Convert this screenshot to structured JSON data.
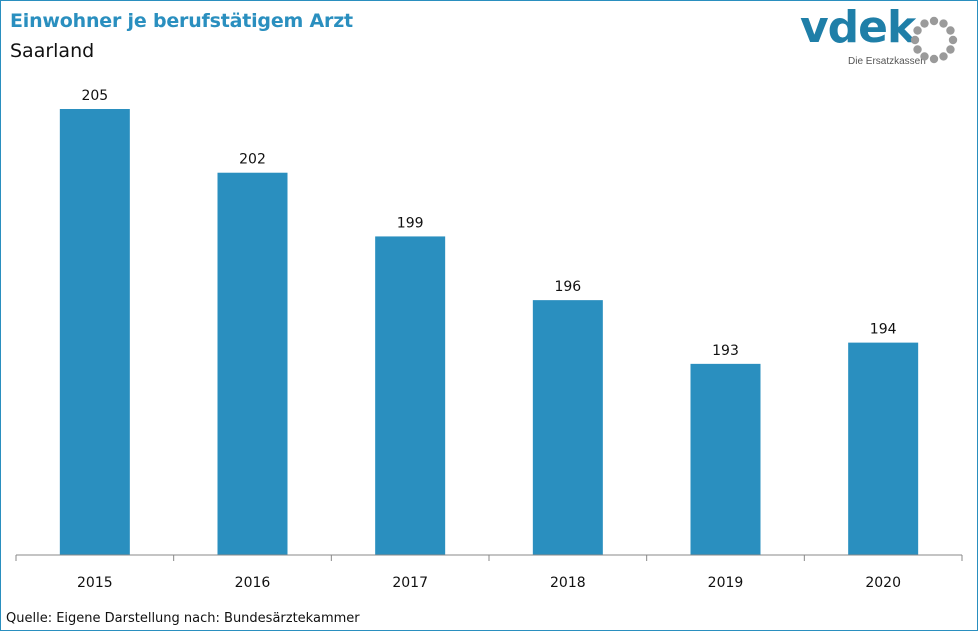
{
  "header": {
    "title": "Einwohner je berufstätigem Arzt",
    "subtitle": "Saarland"
  },
  "logo": {
    "wordmark": "vdek",
    "tagline": "Die Ersatzkassen",
    "color": "#1f7fa8",
    "ring_color": "#9a9a9a"
  },
  "footer": {
    "source": "Quelle: Eigene Darstellung nach: Bundesärztekammer"
  },
  "chart_data": {
    "type": "bar",
    "title": "Einwohner je berufstätigem Arzt",
    "subtitle": "Saarland",
    "categories": [
      "2015",
      "2016",
      "2017",
      "2018",
      "2019",
      "2020"
    ],
    "values": [
      205,
      202,
      199,
      196,
      193,
      194
    ],
    "data_labels": [
      "205",
      "202",
      "199",
      "196",
      "193",
      "194"
    ],
    "xlabel": "",
    "ylabel": "",
    "ylim": [
      184,
      205
    ],
    "grid": false,
    "legend": "none",
    "bar_color": "#2a8fbf"
  }
}
